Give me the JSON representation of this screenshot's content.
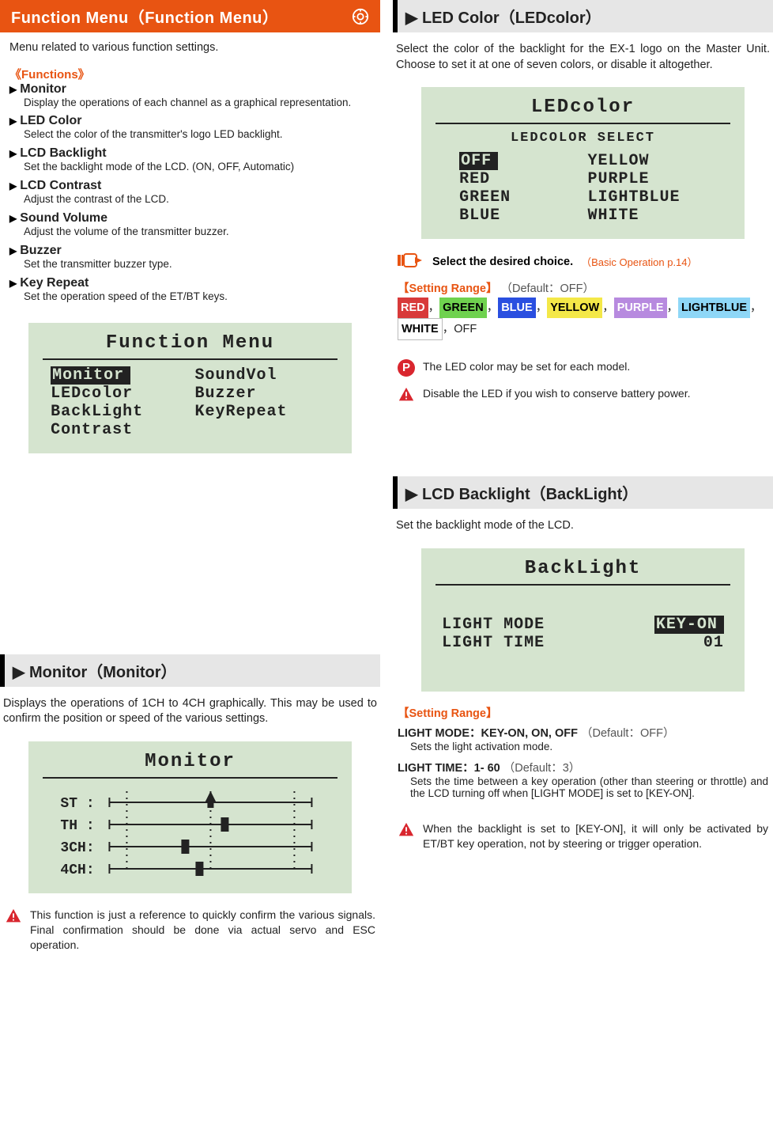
{
  "left": {
    "title_bar": "Function Menu（Function Menu）",
    "intro": "Menu related to various function settings.",
    "functions_label": "《Functions》",
    "functions": [
      {
        "name": "Monitor",
        "desc": "Display the operations of each channel as a graphical representation."
      },
      {
        "name": "LED Color",
        "desc": "Select the color of the transmitter's logo LED backlight."
      },
      {
        "name": "LCD Backlight",
        "desc": "Set the backlight mode of the LCD. (ON, OFF, Automatic)"
      },
      {
        "name": "LCD Contrast",
        "desc": "Adjust the contrast of the LCD."
      },
      {
        "name": "Sound Volume",
        "desc": "Adjust the volume of the transmitter buzzer."
      },
      {
        "name": "Buzzer",
        "desc": "Set the transmitter buzzer type."
      },
      {
        "name": "Key Repeat",
        "desc": "Set the operation speed of the ET/BT keys."
      }
    ],
    "lcd1": {
      "title": "Function Menu",
      "col1": [
        "Monitor",
        "LEDcolor",
        "BackLight",
        "Contrast"
      ],
      "col2": [
        "SoundVol",
        "Buzzer",
        "KeyRepeat",
        ""
      ],
      "selected": "Monitor"
    },
    "monitor": {
      "heading": "▶ Monitor（Monitor）",
      "body": "Displays the operations of 1CH to 4CH graphically. This may be used to confirm the position or speed of the various settings.",
      "lcd_title": "Monitor",
      "rows": [
        "ST :",
        "TH :",
        "3CH:",
        "4CH:"
      ],
      "warn": "This function is just a reference to quickly confirm the various signals. Final confirmation should be done via actual servo and ESC operation."
    }
  },
  "right": {
    "led": {
      "heading": "▶ LED Color（LEDcolor）",
      "body": "Select the color of the backlight for the EX-1 logo on the Master Unit. Choose to set it at one of seven colors, or disable it altogether.",
      "lcd_title": "LEDcolor",
      "lcd_sub": "LEDCOLOR SELECT",
      "options_l": [
        "OFF",
        "RED",
        "GREEN",
        "BLUE"
      ],
      "options_r": [
        "YELLOW",
        "PURPLE",
        "LIGHTBLUE",
        "WHITE"
      ],
      "selected": "OFF",
      "instr": "Select the desired choice.",
      "instr_link": "（Basic Operation p.14）",
      "setrange_title": "【Setting Range】",
      "setrange_default": "（Default：OFF）",
      "colors": [
        {
          "label": "RED",
          "bg": "#d83a3a",
          "fg": "#ffffff"
        },
        {
          "label": "GREEN",
          "bg": "#6fd24f",
          "fg": "#000000"
        },
        {
          "label": "BLUE",
          "bg": "#2a4fe0",
          "fg": "#ffffff"
        },
        {
          "label": "YELLOW",
          "bg": "#f4e848",
          "fg": "#000000"
        },
        {
          "label": "PURPLE",
          "bg": "#b78adf",
          "fg": "#ffffff"
        },
        {
          "label": "LIGHTBLUE",
          "bg": "#8ed7f7",
          "fg": "#000000"
        },
        {
          "label": "WHITE",
          "bg": "#ffffff",
          "fg": "#000000"
        }
      ],
      "colors_tail": "，OFF",
      "note_p": "The LED color may be set for each model.",
      "note_warn": "Disable the LED if you wish to conserve battery power."
    },
    "back": {
      "heading": "▶ LCD Backlight（BackLight）",
      "body": "Set the backlight mode of the LCD.",
      "lcd_title": "BackLight",
      "row1_label": "LIGHT MODE",
      "row1_val": "KEY-ON",
      "row2_label": "LIGHT TIME",
      "row2_val": "01",
      "setrange_title": "【Setting Range】",
      "p1_label": "LIGHT MODE：KEY-ON, ON, OFF",
      "p1_default": "（Default：OFF）",
      "p1_body": "Sets the light activation mode.",
      "p2_label": "LIGHT TIME：1- 60",
      "p2_default": "（Default：3）",
      "p2_body": "Sets the time between a key operation (other than steering or throttle) and the LCD turning off when [LIGHT MODE] is set to [KEY-ON].",
      "warn": "When the backlight is set to [KEY-ON], it will only be activated by ET/BT key operation, not by steering or trigger operation."
    }
  },
  "colors": {
    "accent": "#e85412",
    "lcd_bg": "#d5e4cf",
    "warn_red": "#d9262e"
  }
}
